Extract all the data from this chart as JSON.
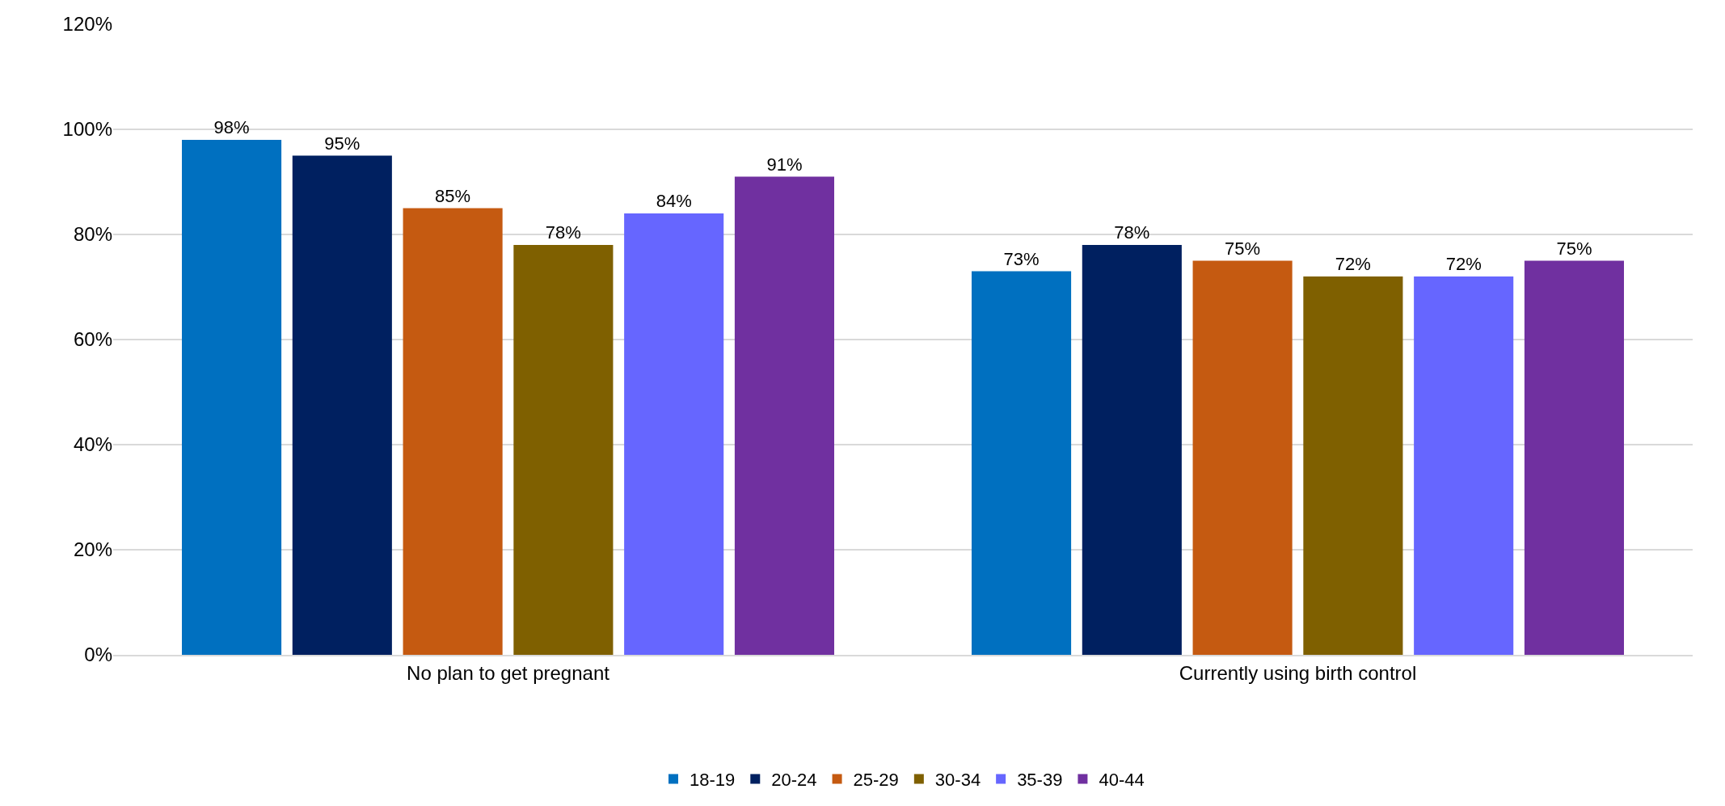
{
  "chart_data": {
    "type": "bar",
    "categories": [
      "No plan to get pregnant",
      "Currently using birth control"
    ],
    "series": [
      {
        "name": "18-19",
        "color": "#0070c0",
        "values": [
          98,
          73
        ],
        "value_labels": [
          "98%",
          "73%"
        ]
      },
      {
        "name": "20-24",
        "color": "#002060",
        "values": [
          95,
          78
        ],
        "value_labels": [
          "95%",
          "78%"
        ]
      },
      {
        "name": "25-29",
        "color": "#c55a11",
        "values": [
          85,
          75
        ],
        "value_labels": [
          "85%",
          "75%"
        ]
      },
      {
        "name": "30-34",
        "color": "#7f6000",
        "values": [
          78,
          72
        ],
        "value_labels": [
          "78%",
          "72%"
        ]
      },
      {
        "name": "35-39",
        "color": "#6666ff",
        "values": [
          84,
          72
        ],
        "value_labels": [
          "84%",
          "72%"
        ]
      },
      {
        "name": "40-44",
        "color": "#7030a0",
        "values": [
          91,
          75
        ],
        "value_labels": [
          "91%",
          "75%"
        ]
      }
    ],
    "ylim": [
      0,
      120
    ],
    "yticks": [
      {
        "value": 0,
        "label": "0%"
      },
      {
        "value": 20,
        "label": "20%"
      },
      {
        "value": 40,
        "label": "40%"
      },
      {
        "value": 60,
        "label": "60%"
      },
      {
        "value": 80,
        "label": "80%"
      },
      {
        "value": 100,
        "label": "100%"
      },
      {
        "value": 120,
        "label": "120%"
      }
    ],
    "grid": "y",
    "legend": "bottom"
  }
}
